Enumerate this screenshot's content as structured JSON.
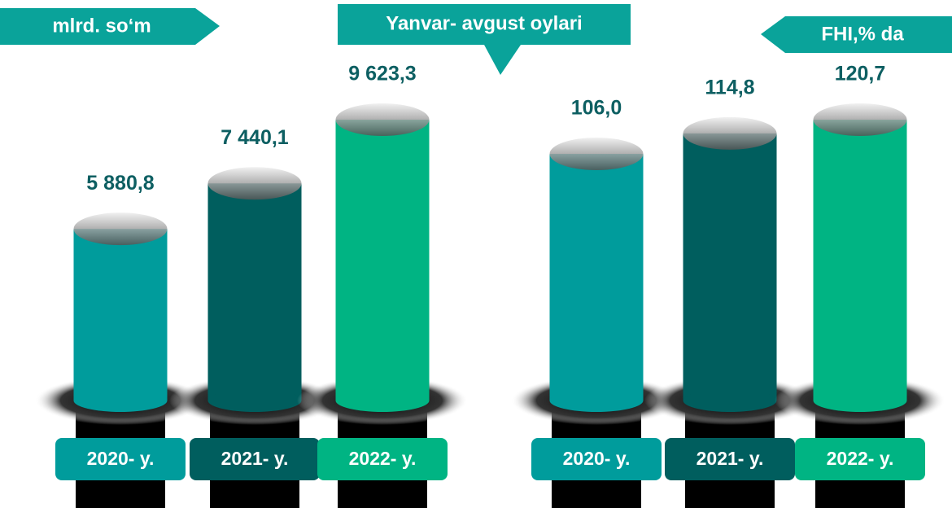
{
  "title": "Yanvar- avgust oylari",
  "chart_data": [
    {
      "type": "bar",
      "title": "mlrd. so‘m",
      "categories": [
        "2020- y.",
        "2021- y.",
        "2022- y."
      ],
      "values": [
        5880.8,
        7440.1,
        9623.3
      ],
      "value_labels": [
        "5 880,8",
        "7 440,1",
        "9 623,3"
      ],
      "colors": [
        "#009c9c",
        "#005e5e",
        "#00b483"
      ]
    },
    {
      "type": "bar",
      "title": "FHI,% da",
      "categories": [
        "2020- y.",
        "2021- y.",
        "2022- y."
      ],
      "values": [
        106.0,
        114.8,
        120.7
      ],
      "value_labels": [
        "106,0",
        "114,8",
        "120,7"
      ],
      "colors": [
        "#009c9c",
        "#005e5e",
        "#00b483"
      ]
    }
  ]
}
